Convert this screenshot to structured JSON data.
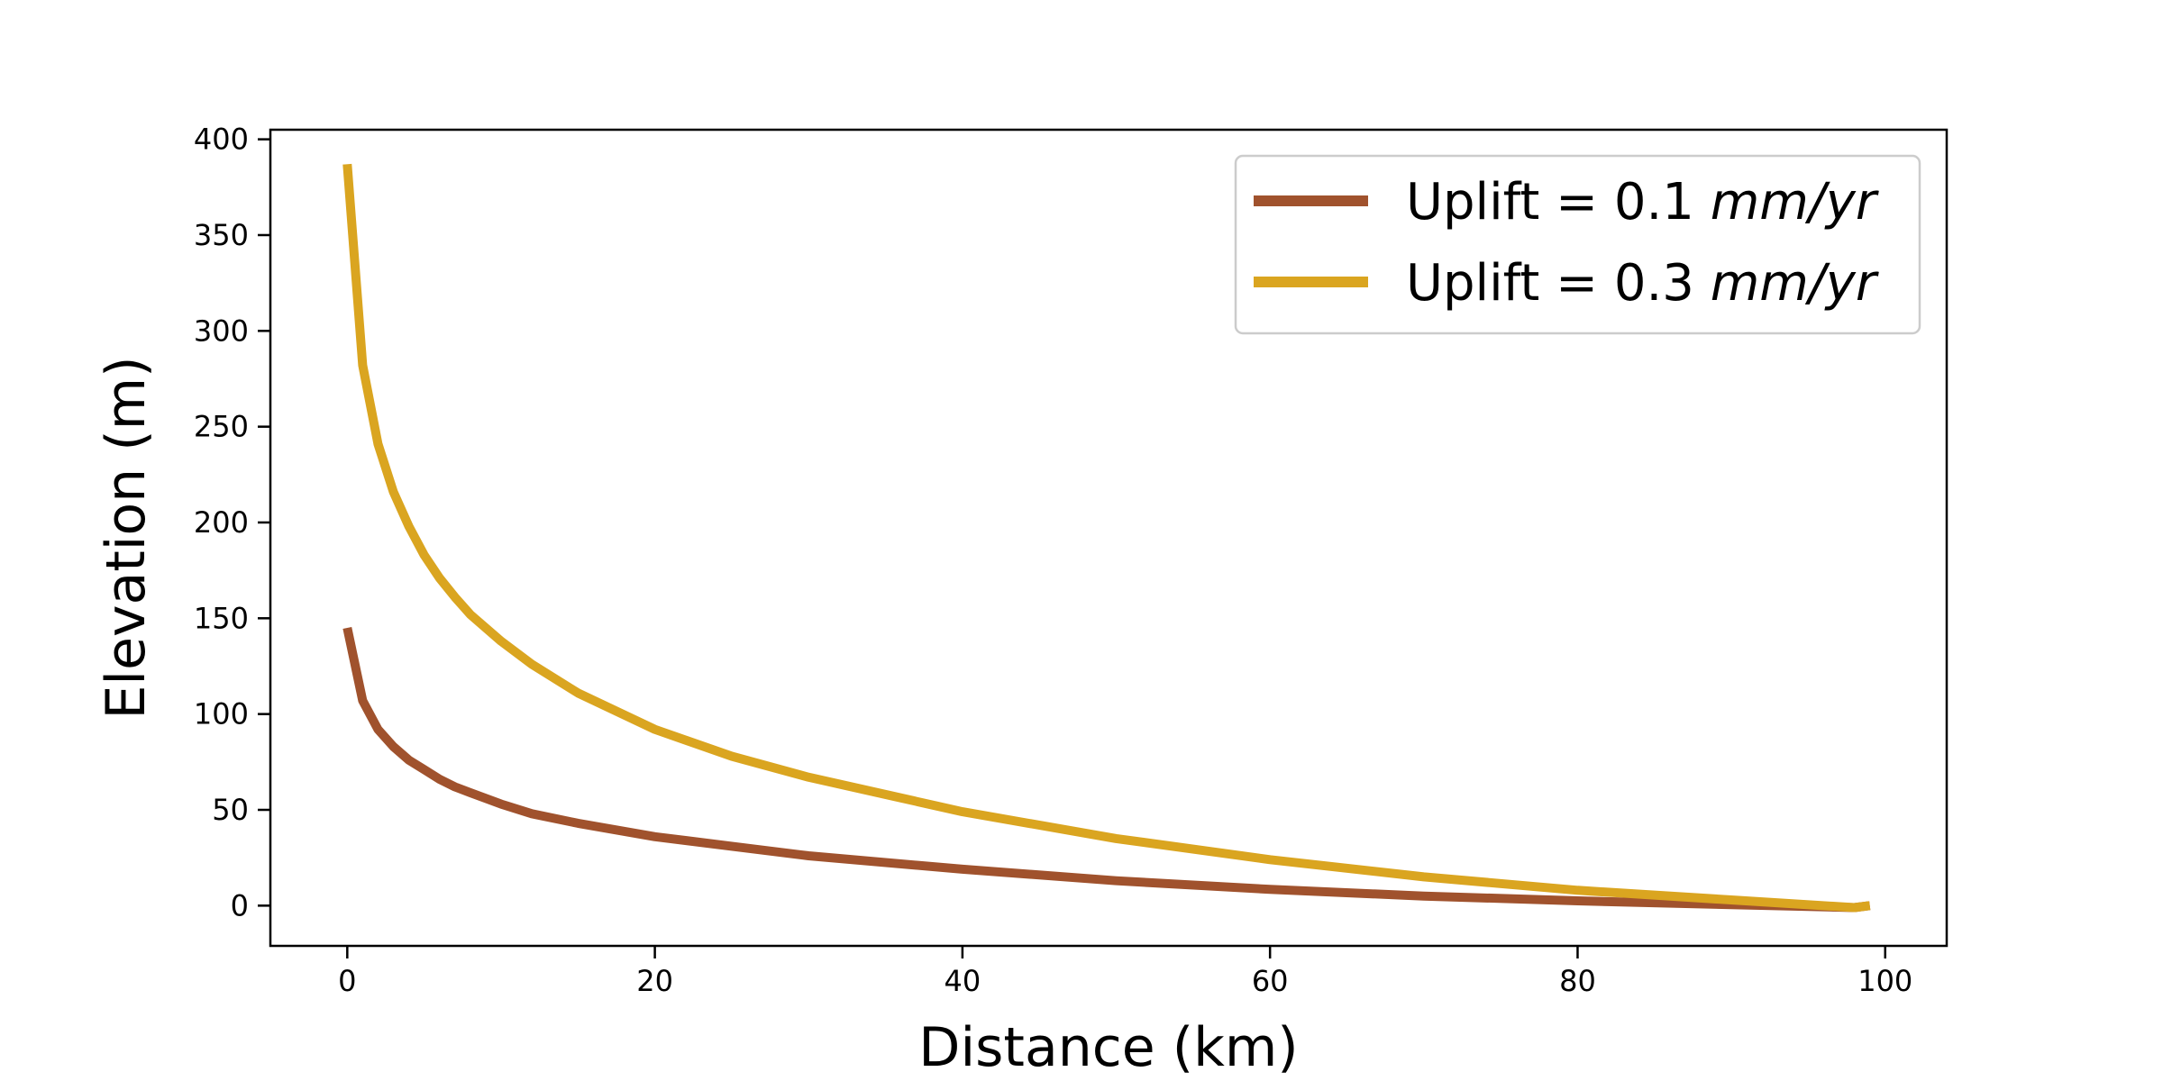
{
  "chart_data": {
    "type": "line",
    "title": "",
    "xlabel": "Distance (km)",
    "ylabel": "Elevation (m)",
    "xlim": [
      -5,
      104
    ],
    "ylim": [
      -21,
      405
    ],
    "xticks": [
      0,
      20,
      40,
      60,
      80,
      100
    ],
    "yticks": [
      0,
      50,
      100,
      150,
      200,
      250,
      300,
      350,
      400
    ],
    "grid": false,
    "legend_position": "top-right",
    "series": [
      {
        "name": "Uplift = 0.1 mm/yr",
        "legend_prefix": "Uplift = 0.1 ",
        "legend_units": "mm/yr",
        "color": "#a0522d",
        "x": [
          0,
          1,
          2,
          3,
          4,
          5,
          6,
          7,
          8,
          10,
          12,
          15,
          20,
          25,
          30,
          40,
          50,
          60,
          70,
          80,
          90,
          98,
          99
        ],
        "y": [
          145,
          107,
          92,
          83,
          76,
          71,
          66,
          62,
          59,
          53,
          48,
          43,
          36,
          31,
          26,
          19,
          13,
          8.5,
          5,
          2.5,
          0.5,
          -1,
          0
        ]
      },
      {
        "name": "Uplift = 0.3 mm/yr",
        "legend_prefix": "Uplift = 0.3 ",
        "legend_units": "mm/yr",
        "color": "#daa520",
        "x": [
          0,
          1,
          2,
          3,
          4,
          5,
          6,
          7,
          8,
          10,
          12,
          15,
          20,
          25,
          30,
          40,
          50,
          60,
          70,
          80,
          90,
          98,
          99
        ],
        "y": [
          387,
          282,
          241,
          216,
          198,
          183,
          171,
          161,
          152,
          138,
          126,
          111,
          92,
          78,
          67,
          49,
          35,
          24,
          15,
          8,
          3,
          -1,
          0
        ]
      }
    ]
  }
}
